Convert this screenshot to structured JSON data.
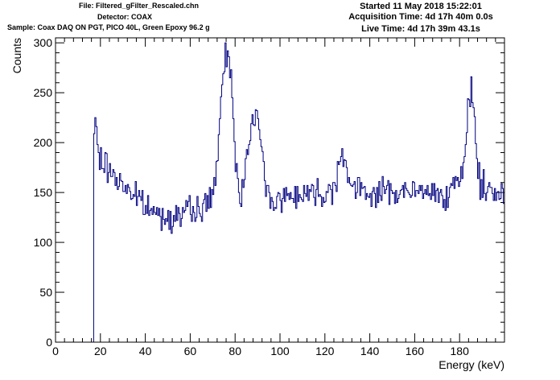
{
  "header": {
    "file": "File: Filtered_gFilter_Rescaled.chn",
    "detector": "Detector: COAX",
    "sample": "Sample: Coax DAQ ON PGT, PICO 40L, Green Epoxy 96.2 g",
    "started": "Started 11 May 2018 15:22:01",
    "acquisition_time": "Acquisition Time: 4d 17h 40m 0.0s",
    "live_time": "Live Time: 4d 17h 39m 43.1s"
  },
  "chart_data": {
    "type": "line",
    "xlabel": "Energy (keV)",
    "ylabel": "Counts",
    "xlim": [
      0,
      200
    ],
    "ylim": [
      0,
      305
    ],
    "x_ticks": [
      0,
      20,
      40,
      60,
      80,
      100,
      120,
      140,
      160,
      180
    ],
    "y_ticks": [
      0,
      50,
      100,
      150,
      200,
      250,
      300
    ],
    "grid": false,
    "legend": "none",
    "series_color": "#000080",
    "bin_width_keV": 0.5,
    "threshold_keV": 17,
    "anchor_points": [
      [
        17,
        0
      ],
      [
        17.2,
        210
      ],
      [
        18,
        215
      ],
      [
        19,
        195
      ],
      [
        20,
        180
      ],
      [
        22,
        178
      ],
      [
        24,
        172
      ],
      [
        26,
        168
      ],
      [
        28,
        162
      ],
      [
        30,
        158
      ],
      [
        32,
        155
      ],
      [
        34,
        150
      ],
      [
        36,
        145
      ],
      [
        38,
        140
      ],
      [
        40,
        136
      ],
      [
        42,
        133
      ],
      [
        44,
        130
      ],
      [
        46,
        128
      ],
      [
        48,
        126
      ],
      [
        50,
        126
      ],
      [
        52,
        127
      ],
      [
        54,
        128
      ],
      [
        56,
        129
      ],
      [
        58,
        130
      ],
      [
        60,
        131
      ],
      [
        62,
        132
      ],
      [
        64,
        133
      ],
      [
        66,
        135
      ],
      [
        68,
        140
      ],
      [
        70,
        150
      ],
      [
        71.5,
        170
      ],
      [
        73,
        210
      ],
      [
        74,
        240
      ],
      [
        75,
        270
      ],
      [
        76,
        284
      ],
      [
        77,
        286
      ],
      [
        78,
        275
      ],
      [
        79,
        240
      ],
      [
        80,
        195
      ],
      [
        81,
        160
      ],
      [
        82,
        145
      ],
      [
        83,
        148
      ],
      [
        84,
        165
      ],
      [
        85,
        190
      ],
      [
        86,
        210
      ],
      [
        87,
        220
      ],
      [
        88,
        222
      ],
      [
        89,
        220
      ],
      [
        90,
        222
      ],
      [
        91,
        210
      ],
      [
        92,
        190
      ],
      [
        93,
        165
      ],
      [
        94,
        152
      ],
      [
        96,
        145
      ],
      [
        98,
        142
      ],
      [
        100,
        143
      ],
      [
        105,
        148
      ],
      [
        110,
        150
      ],
      [
        115,
        150
      ],
      [
        120,
        150
      ],
      [
        124,
        155
      ],
      [
        126,
        175
      ],
      [
        127,
        192
      ],
      [
        128,
        196
      ],
      [
        129,
        185
      ],
      [
        130,
        165
      ],
      [
        132,
        155
      ],
      [
        136,
        150
      ],
      [
        140,
        150
      ],
      [
        145,
        150
      ],
      [
        150,
        152
      ],
      [
        155,
        150
      ],
      [
        160,
        150
      ],
      [
        165,
        150
      ],
      [
        170,
        150
      ],
      [
        174,
        150
      ],
      [
        176,
        152
      ],
      [
        178,
        153
      ],
      [
        180,
        158
      ],
      [
        182,
        175
      ],
      [
        183,
        205
      ],
      [
        184,
        240
      ],
      [
        185,
        255
      ],
      [
        186,
        248
      ],
      [
        187,
        215
      ],
      [
        188,
        180
      ],
      [
        189,
        160
      ],
      [
        190,
        155
      ],
      [
        192,
        153
      ],
      [
        194,
        152
      ],
      [
        196,
        153
      ],
      [
        198,
        150
      ],
      [
        200,
        148
      ]
    ],
    "noise_amplitude": 14,
    "noise_seed": 7
  }
}
